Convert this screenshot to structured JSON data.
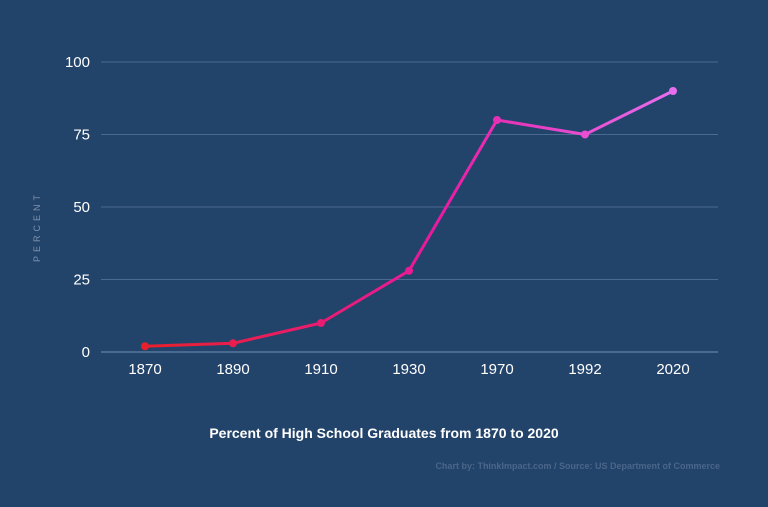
{
  "chart_data": {
    "type": "line",
    "title": "Percent of High School Graduates from 1870 to 2020",
    "ylabel": "PERCENT",
    "xlabel": "",
    "categories": [
      "1870",
      "1890",
      "1910",
      "1930",
      "1970",
      "1992",
      "2020"
    ],
    "values": [
      2,
      3,
      10,
      28,
      80,
      75,
      90
    ],
    "ylim": [
      0,
      100
    ],
    "yticks": [
      0,
      25,
      50,
      75,
      100
    ],
    "grid": true,
    "legend": "none",
    "colors": {
      "background": "#22436a",
      "line_start": "#e8202a",
      "line_mid": "#e81aa0",
      "line_end": "#e86ef0",
      "grid": "#4a6a91"
    }
  },
  "credit": "Chart by: ThinkImpact.com / Source: US Department of Commerce"
}
